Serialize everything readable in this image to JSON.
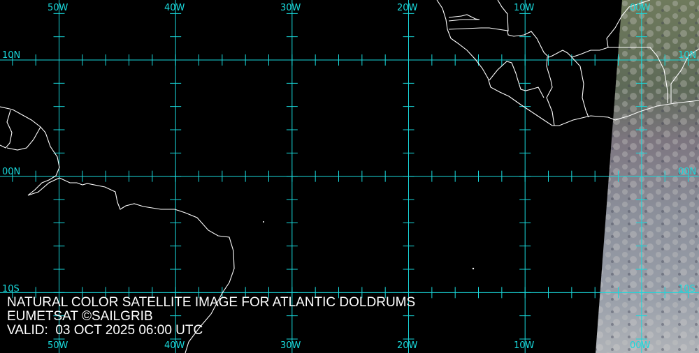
{
  "map": {
    "caption": {
      "title": "NATURAL COLOR SATELLITE IMAGE FOR ATLANTIC DOLDRUMS",
      "credit": "EUMETSAT ©SAILGRIB",
      "valid": "VALID:  03 OCT 2025 06:00 UTC"
    },
    "longitude_labels": [
      "50W",
      "40W",
      "30W",
      "20W",
      "10W",
      "00W"
    ],
    "latitude_labels": [
      "10N",
      "00N",
      "10S"
    ],
    "colors": {
      "grid": "#19d9dc",
      "coastline": "#ffffff",
      "ocean": "#000000"
    }
  }
}
